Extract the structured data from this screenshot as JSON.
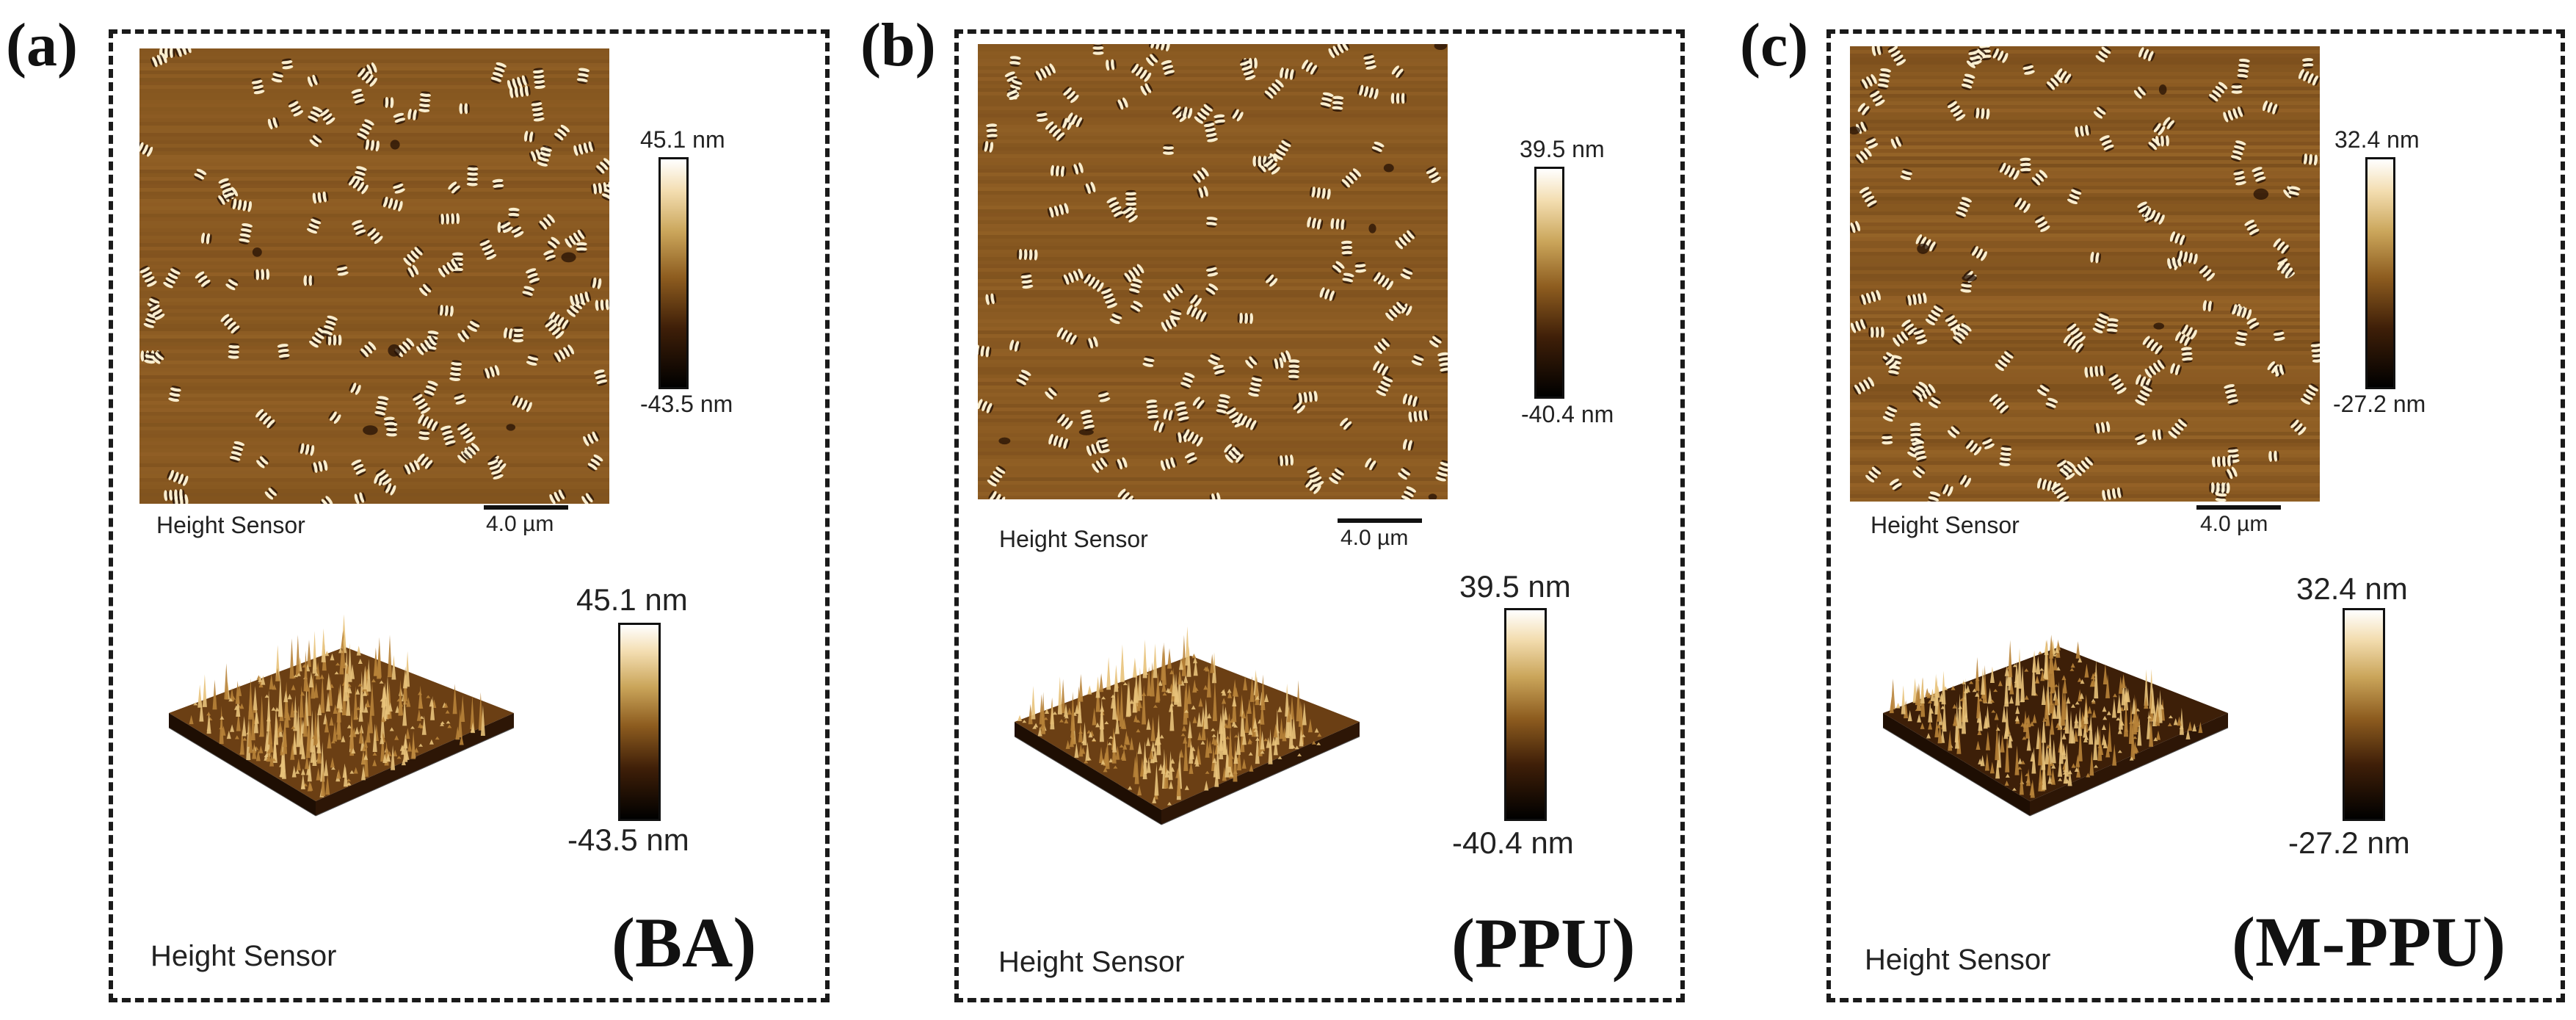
{
  "panels": [
    {
      "letter": "(a)",
      "sample": "(BA)",
      "map_label": "Height Sensor",
      "scale": "4.0 µm",
      "cbar_max_small": "45.1 nm",
      "cbar_min_small": "-43.5 nm",
      "surface_label": "Height Sensor",
      "cbar_max_large": "45.1 nm",
      "cbar_min_large": "-43.5 nm"
    },
    {
      "letter": "(b)",
      "sample": "(PPU)",
      "map_label": "Height Sensor",
      "scale": "4.0 µm",
      "cbar_max_small": "39.5 nm",
      "cbar_min_small": "-40.4 nm",
      "surface_label": "Height Sensor",
      "cbar_max_large": "39.5 nm",
      "cbar_min_large": "-40.4 nm"
    },
    {
      "letter": "(c)",
      "sample": "(M-PPU)",
      "map_label": "Height Sensor",
      "scale": "4.0 µm",
      "cbar_max_small": "32.4 nm",
      "cbar_min_small": "-27.2 nm",
      "surface_label": "Height Sensor",
      "cbar_max_large": "32.4 nm",
      "cbar_min_large": "-27.2 nm"
    }
  ],
  "colors": {
    "afm_background": "#8a5a22",
    "afm_highlight": "#fff6d8",
    "afm_shadow": "#241004",
    "frame": "#1a1a1a"
  }
}
